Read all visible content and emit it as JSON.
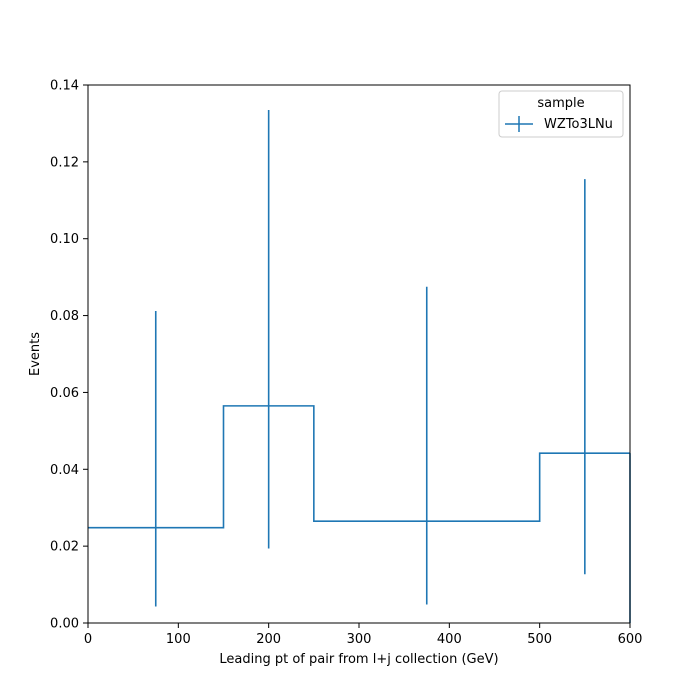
{
  "chart_data": {
    "type": "histogram",
    "title": "",
    "xlabel": "Leading pt of pair from l+j collection (GeV)",
    "ylabel": "Events",
    "xlim": [
      0,
      600
    ],
    "ylim": [
      0,
      0.14
    ],
    "xticks": [
      0,
      100,
      200,
      300,
      400,
      500,
      600
    ],
    "yticks": [
      0.0,
      0.02,
      0.04,
      0.06,
      0.08,
      0.1,
      0.12,
      0.14
    ],
    "xtick_labels": [
      "0",
      "100",
      "200",
      "300",
      "400",
      "500",
      "600"
    ],
    "ytick_labels": [
      "0.00",
      "0.02",
      "0.04",
      "0.06",
      "0.08",
      "0.10",
      "0.12",
      "0.14"
    ],
    "bin_edges": [
      0,
      150,
      250,
      500,
      600
    ],
    "series": [
      {
        "name": "WZTo3LNu",
        "color": "#1f77b4",
        "values": [
          0.0248,
          0.0565,
          0.0265,
          0.0442
        ],
        "error_low": [
          0.0043,
          0.0194,
          0.0048,
          0.0127
        ],
        "error_high": [
          0.0812,
          0.1335,
          0.0875,
          0.1155
        ],
        "trailing_bar": {
          "x": 600,
          "low": 0.0,
          "high": 0.0442
        }
      }
    ],
    "legend": {
      "title": "sample",
      "position": "upper right"
    },
    "grid": false
  }
}
